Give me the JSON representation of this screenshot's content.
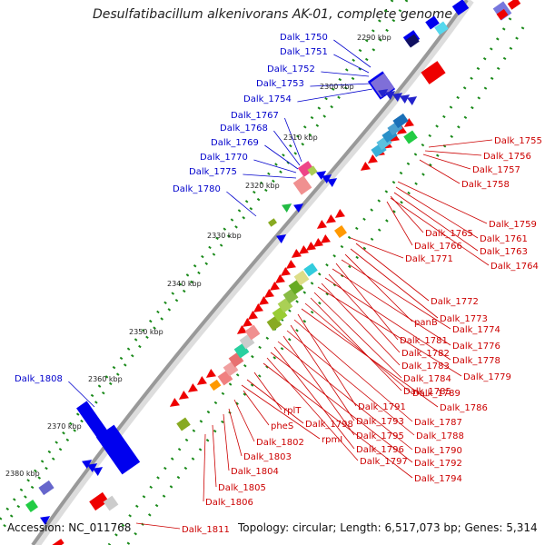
{
  "title": "Desulfatibacillum alkenivorans AK-01, complete genome",
  "footer": {
    "accession": "Accession: NC_011768",
    "summary": "Topology: circular; Length: 6,517,073 bp; Genes: 5,314"
  },
  "ticks": [
    "2290 kbp",
    "2300 kbp",
    "2310 kbp",
    "2320 kbp",
    "2330 kbp",
    "2340 kbp",
    "2350 kbp",
    "2360 kbp",
    "2370 kbp",
    "2380 kbp"
  ],
  "colors": {
    "forward_label": "#0000cc",
    "reverse_label": "#cc0000",
    "forward_gene": "#0000ee",
    "reverse_gene": "#ee0000",
    "backbone": "#999999"
  },
  "forward_genes": [
    "Dalk_1750",
    "Dalk_1751",
    "Dalk_1752",
    "Dalk_1753",
    "Dalk_1754",
    "Dalk_1767",
    "Dalk_1768",
    "Dalk_1769",
    "Dalk_1770",
    "Dalk_1775",
    "Dalk_1780",
    "Dalk_1808"
  ],
  "reverse_genes": [
    "Dalk_1755",
    "Dalk_1756",
    "Dalk_1757",
    "Dalk_1758",
    "Dalk_1759",
    "Dalk_1761",
    "Dalk_1763",
    "Dalk_1764",
    "Dalk_1765",
    "Dalk_1766",
    "Dalk_1771",
    "Dalk_1772",
    "Dalk_1773",
    "panB",
    "Dalk_1774",
    "Dalk_1781",
    "Dalk_1776",
    "Dalk_1782",
    "Dalk_1778",
    "Dalk_1783",
    "Dalk_1779",
    "Dalk_1784",
    "Dalk_1785",
    "Dalk_1789",
    "Dalk_1786",
    "Dalk_1791",
    "Dalk_1787",
    "Dalk_1793",
    "Dalk_1788",
    "Dalk_1795",
    "Dalk_1790",
    "Dalk_1796",
    "Dalk_1792",
    "Dalk_1797",
    "Dalk_1794",
    "rplT",
    "Dalk_1798",
    "rpmI",
    "pheS",
    "Dalk_1802",
    "Dalk_1803",
    "Dalk_1804",
    "Dalk_1805",
    "Dalk_1806",
    "Dalk_1811"
  ]
}
